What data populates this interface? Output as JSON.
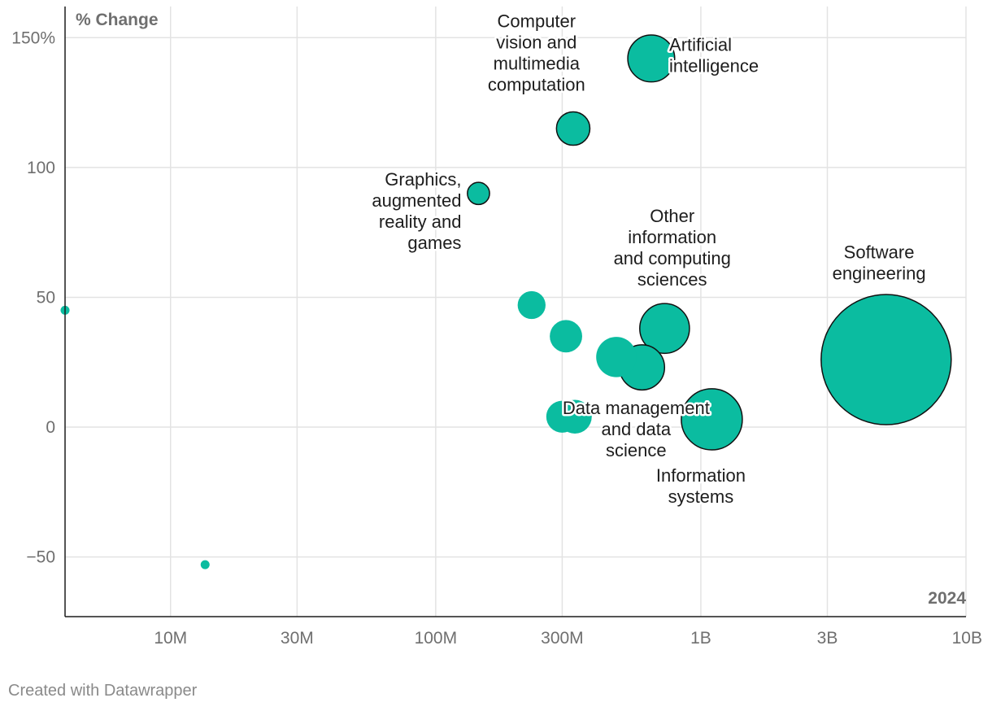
{
  "colors": {
    "bubble": "#0bbca0",
    "outline": "#111111",
    "grid": "#e3e3e3",
    "axis": "#1d1d1d",
    "text": "#1d1d1d",
    "muted": "#6f6f6f"
  },
  "credit": "Created with Datawrapper",
  "chart_data": {
    "type": "scatter",
    "title": "",
    "ylabel": "% Change",
    "xlabel": "",
    "xscale": "log",
    "xlim": [
      4000000,
      10000000000
    ],
    "ylim": [
      -73,
      162
    ],
    "year_label": "2024",
    "x_ticks": [
      {
        "value": 10000000,
        "label": "10M"
      },
      {
        "value": 30000000,
        "label": "30M"
      },
      {
        "value": 100000000,
        "label": "100M"
      },
      {
        "value": 300000000,
        "label": "300M"
      },
      {
        "value": 1000000000,
        "label": "1B"
      },
      {
        "value": 3000000000,
        "label": "3B"
      },
      {
        "value": 10000000000,
        "label": "10B"
      }
    ],
    "y_ticks": [
      {
        "value": 150,
        "label": "150%"
      },
      {
        "value": 100,
        "label": "100"
      },
      {
        "value": 50,
        "label": "50"
      },
      {
        "value": 0,
        "label": "0"
      },
      {
        "value": -50,
        "label": "−50"
      }
    ],
    "points": [
      {
        "x": 4000000,
        "y": 45,
        "size": 4000000,
        "highlight": false
      },
      {
        "x": 13500000,
        "y": -53,
        "size": 13500000,
        "highlight": false
      },
      {
        "x": 145000000,
        "y": 90,
        "size": 145000000,
        "highlight": true
      },
      {
        "x": 330000000,
        "y": 115,
        "size": 330000000,
        "highlight": true
      },
      {
        "x": 650000000,
        "y": 142,
        "size": 650000000,
        "highlight": true
      },
      {
        "x": 230000000,
        "y": 47,
        "size": 230000000,
        "highlight": false
      },
      {
        "x": 310000000,
        "y": 35,
        "size": 310000000,
        "highlight": false
      },
      {
        "x": 480000000,
        "y": 27,
        "size": 480000000,
        "highlight": false
      },
      {
        "x": 730000000,
        "y": 38,
        "size": 730000000,
        "highlight": true
      },
      {
        "x": 600000000,
        "y": 23,
        "size": 600000000,
        "highlight": true
      },
      {
        "x": 300000000,
        "y": 4,
        "size": 300000000,
        "highlight": false
      },
      {
        "x": 335000000,
        "y": 4,
        "size": 335000000,
        "highlight": false
      },
      {
        "x": 1100000000,
        "y": 3,
        "size": 1100000000,
        "highlight": true
      },
      {
        "x": 5000000000,
        "y": 26,
        "size": 5000000000,
        "highlight": true
      }
    ],
    "annotations": [
      {
        "lines": [
          "Computer",
          "vision and",
          "multimedia",
          "computation"
        ],
        "x": 240000000,
        "y": 154,
        "align": "middle"
      },
      {
        "lines": [
          "Artificial",
          "intelligence"
        ],
        "x": 760000000,
        "y": 145,
        "align": "start"
      },
      {
        "lines": [
          "Graphics,",
          "augmented",
          "reality and",
          "games"
        ],
        "x": 125000000,
        "y": 93,
        "align": "end"
      },
      {
        "lines": [
          "Other",
          "information",
          "and computing",
          "sciences"
        ],
        "x": 780000000,
        "y": 79,
        "align": "middle"
      },
      {
        "lines": [
          "Software",
          "engineering"
        ],
        "x": 4700000000,
        "y": 65,
        "align": "middle"
      },
      {
        "lines": [
          "Data management",
          "and data",
          "science"
        ],
        "x": 570000000,
        "y": 5,
        "align": "middle"
      },
      {
        "lines": [
          "Information",
          "systems"
        ],
        "x": 1000000000,
        "y": -21,
        "align": "middle"
      }
    ]
  }
}
